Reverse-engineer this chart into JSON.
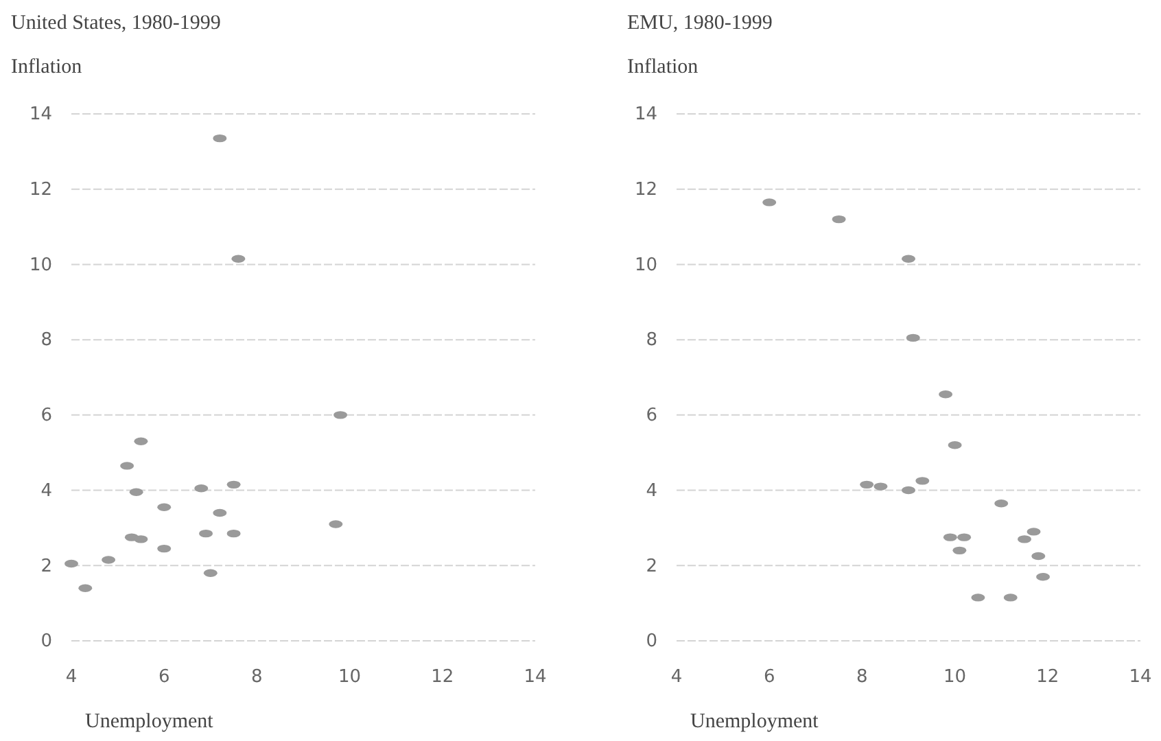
{
  "chart_data": [
    {
      "type": "scatter",
      "title": "United States, 1980-1999",
      "ylabel": "Inflation",
      "xlabel": "Unemployment",
      "color": "#9a9a9a",
      "marker": "circle",
      "grid": "y",
      "x": [
        4.0,
        4.3,
        4.8,
        5.2,
        5.5,
        5.4,
        5.3,
        5.5,
        6.0,
        6.0,
        6.8,
        6.9,
        7.0,
        7.2,
        7.2,
        7.5,
        7.5,
        7.6,
        9.8,
        9.7
      ],
      "values": [
        2.05,
        1.4,
        2.15,
        4.65,
        5.3,
        3.95,
        2.75,
        2.7,
        3.55,
        2.45,
        4.05,
        2.85,
        1.8,
        3.4,
        13.35,
        4.15,
        2.85,
        10.15,
        6.0,
        3.1
      ],
      "xlim": [
        4,
        14
      ],
      "ylim": [
        0,
        14
      ],
      "xticks": [
        4,
        6,
        8,
        10,
        12,
        14
      ],
      "yticks": [
        0,
        2,
        4,
        6,
        8,
        10,
        12,
        14
      ]
    },
    {
      "type": "scatter",
      "title": "EMU, 1980-1999",
      "ylabel": "Inflation",
      "xlabel": "Unemployment",
      "color": "#9a9a9a",
      "marker": "circle",
      "grid": "y",
      "x": [
        6.0,
        7.5,
        9.0,
        9.1,
        9.8,
        10.0,
        8.1,
        8.4,
        9.0,
        9.3,
        11.0,
        9.9,
        10.2,
        10.1,
        11.5,
        11.7,
        11.8,
        11.9,
        10.5,
        11.2
      ],
      "values": [
        11.65,
        11.2,
        10.15,
        8.05,
        6.55,
        5.2,
        4.15,
        4.1,
        4.0,
        4.25,
        3.65,
        2.75,
        2.75,
        2.4,
        2.7,
        2.9,
        2.25,
        1.7,
        1.15,
        1.15
      ],
      "xlim": [
        4,
        14
      ],
      "ylim": [
        0,
        14
      ],
      "xticks": [
        4,
        6,
        8,
        10,
        12,
        14
      ],
      "yticks": [
        0,
        2,
        4,
        6,
        8,
        10,
        12,
        14
      ]
    }
  ]
}
